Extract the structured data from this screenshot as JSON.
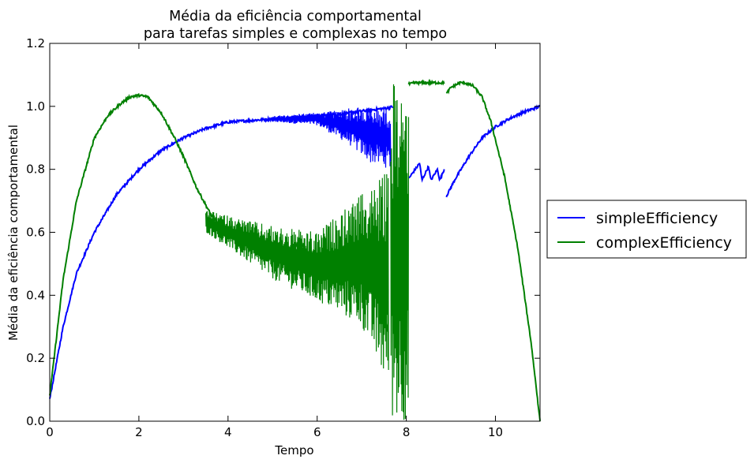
{
  "chart_data": {
    "type": "line",
    "title": [
      "Média da eficiência comportamental",
      "para tarefas simples e complexas no tempo"
    ],
    "xlabel": "Tempo",
    "ylabel": "Média da eficiência comportamental",
    "xlim": [
      0,
      11
    ],
    "ylim": [
      0,
      1.2
    ],
    "x_ticks": [
      0,
      2,
      4,
      6,
      8,
      10
    ],
    "y_ticks": [
      0.0,
      0.2,
      0.4,
      0.6,
      0.8,
      1.0,
      1.2
    ],
    "x_tick_labels": [
      "0",
      "2",
      "4",
      "6",
      "8",
      "10"
    ],
    "y_tick_labels": [
      "0.0",
      "0.2",
      "0.4",
      "0.6",
      "0.8",
      "1.0",
      "1.2"
    ],
    "grid": false,
    "legend_position": "outside-right",
    "series": [
      {
        "name": "simpleEfficiency",
        "color": "#0000ff",
        "segments": [
          {
            "x": [
              0.0,
              0.3,
              0.6,
              1.0,
              1.5,
              2.0,
              2.5,
              3.0,
              3.5,
              4.0,
              4.5,
              5.0,
              5.5,
              6.0,
              6.5,
              7.0,
              7.3,
              7.6,
              7.7
            ],
            "y": [
              0.07,
              0.3,
              0.47,
              0.6,
              0.72,
              0.8,
              0.86,
              0.9,
              0.93,
              0.95,
              0.955,
              0.96,
              0.965,
              0.97,
              0.975,
              0.985,
              0.99,
              0.995,
              1.0
            ]
          },
          {
            "x": [
              8.05,
              8.3,
              8.35,
              8.5,
              8.55,
              8.7,
              8.75,
              8.85
            ],
            "y": [
              0.77,
              0.82,
              0.765,
              0.81,
              0.765,
              0.8,
              0.765,
              0.8
            ]
          },
          {
            "x": [
              8.9,
              9.1,
              9.4,
              9.7,
              10.0,
              10.3,
              10.6,
              10.9,
              11.0
            ],
            "y": [
              0.715,
              0.77,
              0.84,
              0.9,
              0.935,
              0.96,
              0.98,
              0.995,
              1.0
            ]
          }
        ],
        "noise_bands": [
          {
            "x": [
              5.0,
              6.0,
              6.7,
              7.2,
              7.65
            ],
            "upper": [
              0.97,
              0.98,
              0.995,
              1.0,
              1.0
            ],
            "lower": [
              0.95,
              0.94,
              0.88,
              0.82,
              0.8
            ]
          }
        ]
      },
      {
        "name": "complexEfficiency",
        "color": "#008000",
        "segments": [
          {
            "x": [
              0.0,
              0.3,
              0.6,
              1.0,
              1.3,
              1.6,
              1.8,
              2.0,
              2.2,
              2.5,
              2.8,
              3.0,
              3.3,
              3.6,
              3.8,
              4.0,
              4.3,
              4.6,
              5.0,
              5.3,
              5.6,
              6.0,
              6.3,
              6.6,
              7.0,
              7.3,
              7.6
            ],
            "y": [
              0.08,
              0.45,
              0.7,
              0.9,
              0.97,
              1.01,
              1.03,
              1.035,
              1.03,
              0.98,
              0.9,
              0.84,
              0.74,
              0.66,
              0.62,
              0.61,
              0.6,
              0.59,
              0.54,
              0.53,
              0.57,
              0.5,
              0.48,
              0.45,
              0.45,
              0.42,
              0.28
            ]
          },
          {
            "x": [
              8.05,
              8.2,
              8.4,
              8.6,
              8.8,
              8.85
            ],
            "y": [
              1.07,
              1.075,
              1.075,
              1.075,
              1.075,
              1.075
            ]
          },
          {
            "x": [
              8.9,
              9.0,
              9.2,
              9.3,
              9.5,
              9.7,
              9.9,
              10.2,
              10.5,
              10.8,
              11.0
            ],
            "y": [
              1.04,
              1.06,
              1.075,
              1.075,
              1.065,
              1.03,
              0.95,
              0.78,
              0.55,
              0.25,
              0.0
            ]
          }
        ],
        "noise_bands": [
          {
            "x": [
              3.5,
              5.0,
              6.0,
              7.0,
              7.6
            ],
            "upper": [
              0.67,
              0.62,
              0.6,
              0.72,
              0.8
            ],
            "lower": [
              0.6,
              0.45,
              0.38,
              0.3,
              0.1
            ]
          },
          {
            "x": [
              7.65,
              8.05
            ],
            "upper": [
              1.08,
              1.08
            ],
            "lower": [
              0.0,
              0.0
            ]
          }
        ]
      }
    ]
  }
}
